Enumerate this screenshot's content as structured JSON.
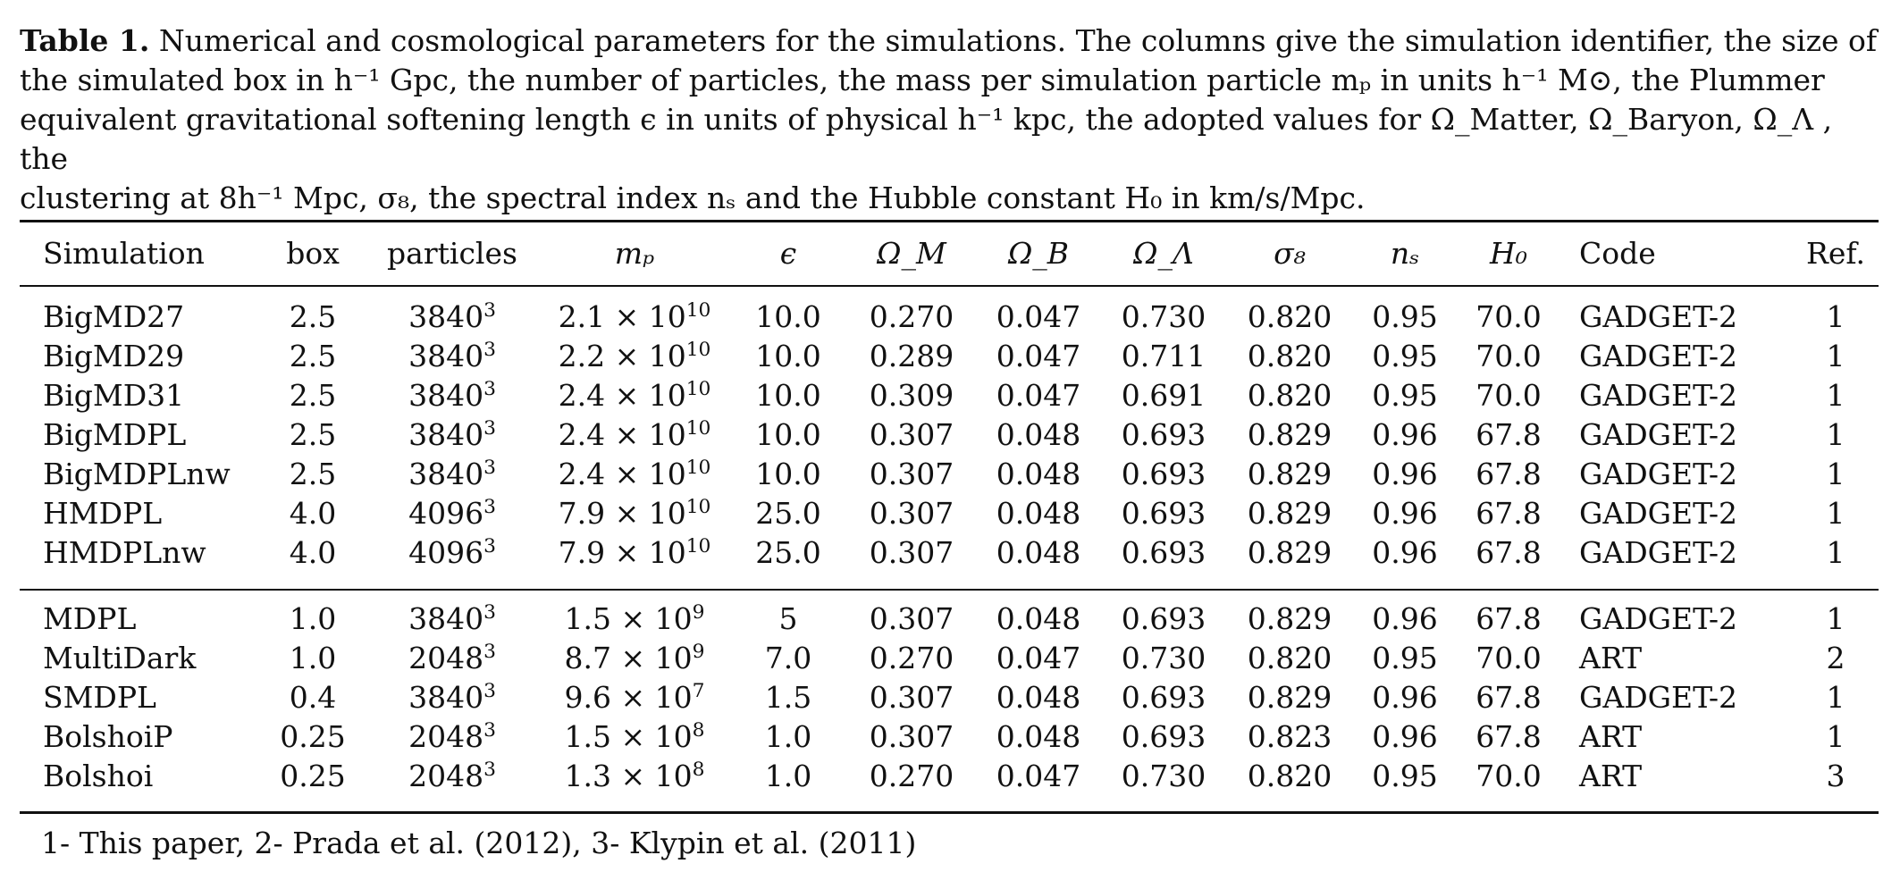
{
  "caption": {
    "label": "Table 1.",
    "line1": "Numerical and cosmological parameters for the simulations. The columns give the simulation identifier, the size of",
    "line2": "the simulated box in h⁻¹ Gpc, the number of particles, the mass per simulation particle mₚ in units h⁻¹ M⊙, the Plummer",
    "line3": "equivalent gravitational softening length ϵ in units of physical h⁻¹ kpc, the adopted values for Ω_Matter, Ω_Baryon, Ω_Λ , the",
    "line4": "clustering at 8h⁻¹ Mpc,  σ₈, the spectral index nₛ and the Hubble constant H₀ in km/s/Mpc."
  },
  "headers": {
    "simulation": "Simulation",
    "box": "box",
    "particles": "particles",
    "mp": "mₚ",
    "eps": "ϵ",
    "om": "Ω_M",
    "ob": "Ω_B",
    "ol": "Ω_Λ",
    "s8": "σ₈",
    "ns": "nₛ",
    "h0": "H₀",
    "code": "Code",
    "ref": "Ref."
  },
  "rows": [
    {
      "sim": "BigMD27",
      "box": "2.5",
      "part_base": "3840",
      "part_exp": "3",
      "mp_coef": "2.1 × 10",
      "mp_exp": "10",
      "eps": "10.0",
      "om": "0.270",
      "ob": "0.047",
      "ol": "0.730",
      "s8": "0.820",
      "ns": "0.95",
      "h0": "70.0",
      "code": "GADGET-2",
      "ref": "1"
    },
    {
      "sim": "BigMD29",
      "box": "2.5",
      "part_base": "3840",
      "part_exp": "3",
      "mp_coef": "2.2 × 10",
      "mp_exp": "10",
      "eps": "10.0",
      "om": "0.289",
      "ob": "0.047",
      "ol": "0.711",
      "s8": "0.820",
      "ns": "0.95",
      "h0": "70.0",
      "code": "GADGET-2",
      "ref": "1"
    },
    {
      "sim": "BigMD31",
      "box": "2.5",
      "part_base": "3840",
      "part_exp": "3",
      "mp_coef": "2.4 × 10",
      "mp_exp": "10",
      "eps": "10.0",
      "om": "0.309",
      "ob": "0.047",
      "ol": "0.691",
      "s8": "0.820",
      "ns": "0.95",
      "h0": "70.0",
      "code": "GADGET-2",
      "ref": "1"
    },
    {
      "sim": "BigMDPL",
      "box": "2.5",
      "part_base": "3840",
      "part_exp": "3",
      "mp_coef": "2.4 × 10",
      "mp_exp": "10",
      "eps": "10.0",
      "om": "0.307",
      "ob": "0.048",
      "ol": "0.693",
      "s8": "0.829",
      "ns": "0.96",
      "h0": "67.8",
      "code": "GADGET-2",
      "ref": "1"
    },
    {
      "sim": "BigMDPLnw",
      "box": "2.5",
      "part_base": "3840",
      "part_exp": "3",
      "mp_coef": "2.4 × 10",
      "mp_exp": "10",
      "eps": "10.0",
      "om": "0.307",
      "ob": "0.048",
      "ol": "0.693",
      "s8": "0.829",
      "ns": "0.96",
      "h0": "67.8",
      "code": "GADGET-2",
      "ref": "1"
    },
    {
      "sim": "HMDPL",
      "box": "4.0",
      "part_base": "4096",
      "part_exp": "3",
      "mp_coef": "7.9 × 10",
      "mp_exp": "10",
      "eps": "25.0",
      "om": "0.307",
      "ob": "0.048",
      "ol": "0.693",
      "s8": "0.829",
      "ns": "0.96",
      "h0": "67.8",
      "code": "GADGET-2",
      "ref": "1"
    },
    {
      "sim": "HMDPLnw",
      "box": "4.0",
      "part_base": "4096",
      "part_exp": "3",
      "mp_coef": "7.9 × 10",
      "mp_exp": "10",
      "eps": "25.0",
      "om": "0.307",
      "ob": "0.048",
      "ol": "0.693",
      "s8": "0.829",
      "ns": "0.96",
      "h0": "67.8",
      "code": "GADGET-2",
      "ref": "1"
    },
    {
      "sim": "MDPL",
      "box": "1.0",
      "part_base": "3840",
      "part_exp": "3",
      "mp_coef": "1.5 × 10",
      "mp_exp": "9",
      "eps": "5",
      "om": "0.307",
      "ob": "0.048",
      "ol": "0.693",
      "s8": "0.829",
      "ns": "0.96",
      "h0": "67.8",
      "code": "GADGET-2",
      "ref": "1"
    },
    {
      "sim": "MultiDark",
      "box": "1.0",
      "part_base": "2048",
      "part_exp": "3",
      "mp_coef": "8.7 × 10",
      "mp_exp": "9",
      "eps": "7.0",
      "om": "0.270",
      "ob": "0.047",
      "ol": "0.730",
      "s8": "0.820",
      "ns": "0.95",
      "h0": "70.0",
      "code": "ART",
      "ref": "2"
    },
    {
      "sim": "SMDPL",
      "box": "0.4",
      "part_base": "3840",
      "part_exp": "3",
      "mp_coef": "9.6 × 10",
      "mp_exp": "7",
      "eps": "1.5",
      "om": "0.307",
      "ob": "0.048",
      "ol": "0.693",
      "s8": "0.829",
      "ns": "0.96",
      "h0": "67.8",
      "code": "GADGET-2",
      "ref": "1"
    },
    {
      "sim": "BolshoiP",
      "box": "0.25",
      "part_base": "2048",
      "part_exp": "3",
      "mp_coef": "1.5 × 10",
      "mp_exp": "8",
      "eps": "1.0",
      "om": "0.307",
      "ob": "0.048",
      "ol": "0.693",
      "s8": "0.823",
      "ns": "0.96",
      "h0": "67.8",
      "code": "ART",
      "ref": "1"
    },
    {
      "sim": "Bolshoi",
      "box": "0.25",
      "part_base": "2048",
      "part_exp": "3",
      "mp_coef": "1.3 × 10",
      "mp_exp": "8",
      "eps": "1.0",
      "om": "0.270",
      "ob": "0.047",
      "ol": "0.730",
      "s8": "0.820",
      "ns": "0.95",
      "h0": "70.0",
      "code": "ART",
      "ref": "3"
    }
  ],
  "footnote": "1- This paper, 2- Prada et al. (2012), 3- Klypin et al. (2011)"
}
